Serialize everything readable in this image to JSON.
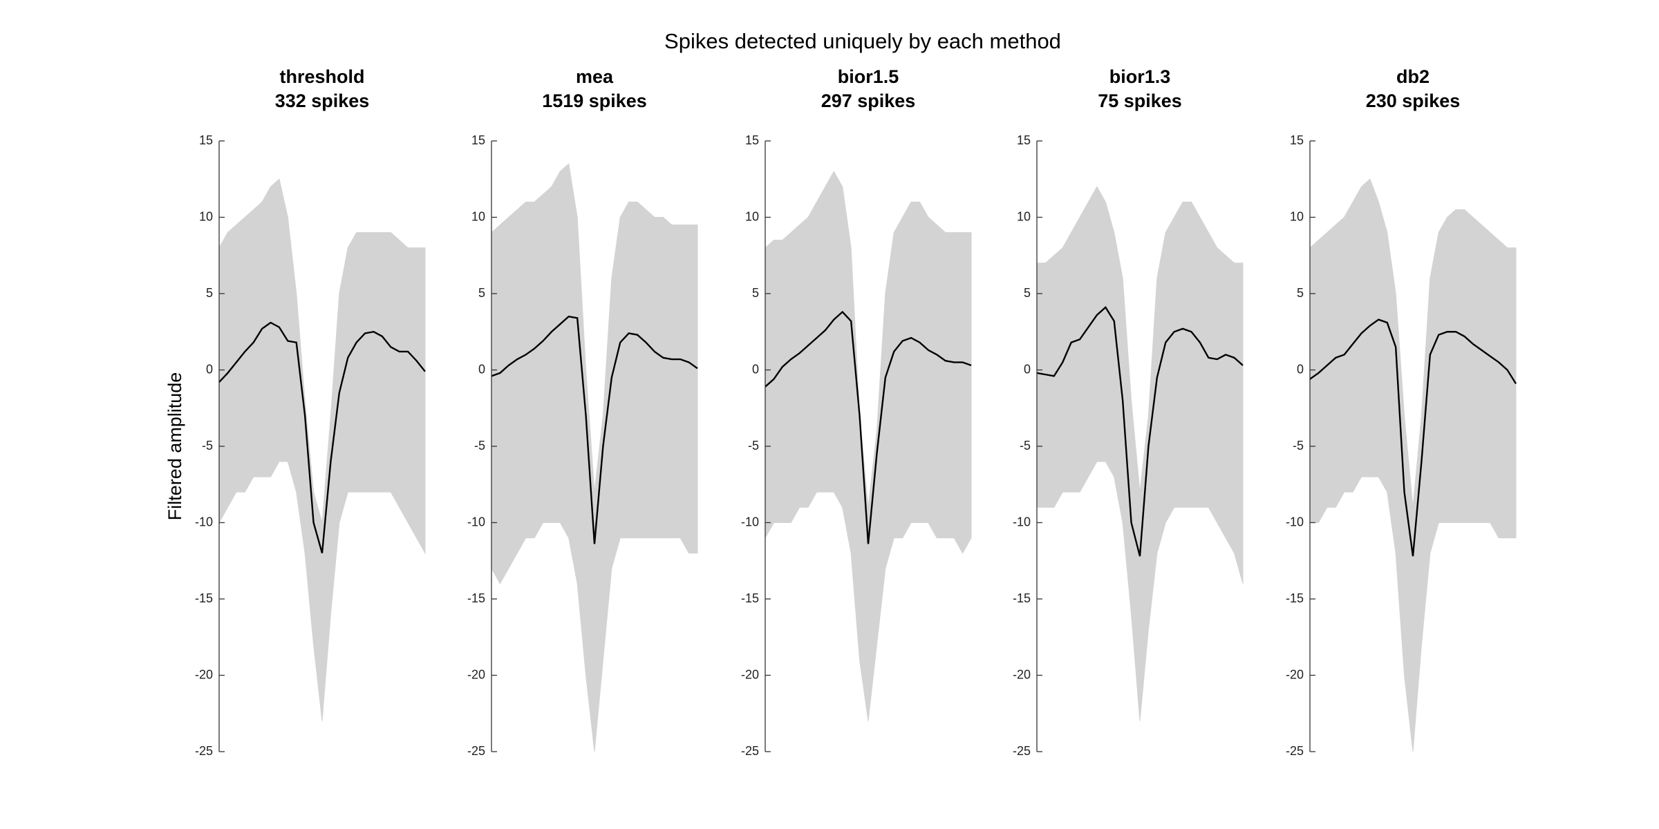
{
  "title": "Spikes detected uniquely by each method",
  "chart_data": [
    {
      "type": "line",
      "title": "threshold",
      "subtitle": "332 spikes",
      "y_label": "Filtered amplitude",
      "ylim": [
        -25,
        15
      ],
      "yticks": [
        -25,
        -20,
        -15,
        -10,
        -5,
        0,
        5,
        10,
        15
      ],
      "traces": {
        "color": "#d3d3d3",
        "upper": [
          8,
          9,
          9.5,
          10,
          10.5,
          11,
          12,
          12.5,
          10,
          5,
          -2,
          -8,
          -10,
          -3,
          5,
          8,
          9,
          9,
          9,
          9,
          9,
          8.5,
          8,
          8,
          8
        ],
        "lower": [
          -10,
          -9,
          -8,
          -8,
          -7,
          -7,
          -7,
          -6,
          -6,
          -8,
          -12,
          -18,
          -23,
          -16,
          -10,
          -8,
          -8,
          -8,
          -8,
          -8,
          -8,
          -9,
          -10,
          -11,
          -12
        ]
      },
      "mean": {
        "color": "#000000",
        "values": [
          -0.8,
          -0.2,
          0.5,
          1.2,
          1.8,
          2.7,
          3.1,
          2.8,
          1.9,
          1.8,
          -3,
          -10,
          -12,
          -6,
          -1.5,
          0.8,
          1.8,
          2.4,
          2.5,
          2.2,
          1.5,
          1.2,
          1.2,
          0.6,
          -0.1
        ]
      }
    },
    {
      "type": "line",
      "title": "mea",
      "subtitle": "1519 spikes",
      "ylim": [
        -25,
        15
      ],
      "yticks": [
        -25,
        -20,
        -15,
        -10,
        -5,
        0,
        5,
        10,
        15
      ],
      "traces": {
        "color": "#d3d3d3",
        "upper": [
          9,
          9.5,
          10,
          10.5,
          11,
          11,
          11.5,
          12,
          13,
          13.5,
          10,
          0,
          -8,
          -3,
          6,
          10,
          11,
          11,
          10.5,
          10,
          10,
          9.5,
          9.5,
          9.5,
          9.5
        ],
        "lower": [
          -13,
          -14,
          -13,
          -12,
          -11,
          -11,
          -10,
          -10,
          -10,
          -11,
          -14,
          -20,
          -25,
          -19,
          -13,
          -11,
          -11,
          -11,
          -11,
          -11,
          -11,
          -11,
          -11,
          -12,
          -12
        ]
      },
      "mean": {
        "color": "#000000",
        "values": [
          -0.4,
          -0.2,
          0.3,
          0.7,
          1.0,
          1.4,
          1.9,
          2.5,
          3.0,
          3.5,
          3.4,
          -3,
          -11.4,
          -5,
          -0.5,
          1.8,
          2.4,
          2.3,
          1.8,
          1.2,
          0.8,
          0.7,
          0.7,
          0.5,
          0.1
        ]
      }
    },
    {
      "type": "line",
      "title": "bior1.5",
      "subtitle": "297 spikes",
      "ylim": [
        -25,
        15
      ],
      "yticks": [
        -25,
        -20,
        -15,
        -10,
        -5,
        0,
        5,
        10,
        15
      ],
      "traces": {
        "color": "#d3d3d3",
        "upper": [
          8,
          8.5,
          8.5,
          9,
          9.5,
          10,
          11,
          12,
          13,
          12,
          8,
          -3,
          -9,
          -4,
          5,
          9,
          10,
          11,
          11,
          10,
          9.5,
          9,
          9,
          9,
          9
        ],
        "lower": [
          -11,
          -10,
          -10,
          -10,
          -9,
          -9,
          -8,
          -8,
          -8,
          -9,
          -12,
          -19,
          -23,
          -18,
          -13,
          -11,
          -11,
          -10,
          -10,
          -10,
          -11,
          -11,
          -11,
          -12,
          -11
        ]
      },
      "mean": {
        "color": "#000000",
        "values": [
          -1.1,
          -0.6,
          0.2,
          0.7,
          1.1,
          1.6,
          2.1,
          2.6,
          3.3,
          3.8,
          3.2,
          -3,
          -11.4,
          -5.5,
          -0.5,
          1.2,
          1.9,
          2.1,
          1.8,
          1.3,
          1.0,
          0.6,
          0.5,
          0.5,
          0.3
        ]
      }
    },
    {
      "type": "line",
      "title": "bior1.3",
      "subtitle": "75 spikes",
      "ylim": [
        -25,
        15
      ],
      "yticks": [
        -25,
        -20,
        -15,
        -10,
        -5,
        0,
        5,
        10,
        15
      ],
      "traces": {
        "color": "#d3d3d3",
        "upper": [
          7,
          7,
          7.5,
          8,
          9,
          10,
          11,
          12,
          11,
          9,
          6,
          -2,
          -8,
          -3,
          6,
          9,
          10,
          11,
          11,
          10,
          9,
          8,
          7.5,
          7,
          7
        ],
        "lower": [
          -9,
          -9,
          -9,
          -8,
          -8,
          -8,
          -7,
          -6,
          -6,
          -7,
          -10,
          -16,
          -23,
          -17,
          -12,
          -10,
          -9,
          -9,
          -9,
          -9,
          -9,
          -10,
          -11,
          -12,
          -14
        ]
      },
      "mean": {
        "color": "#000000",
        "values": [
          -0.2,
          -0.3,
          -0.4,
          0.5,
          1.8,
          2.0,
          2.8,
          3.6,
          4.1,
          3.2,
          -2,
          -10,
          -12.2,
          -5,
          -0.5,
          1.8,
          2.5,
          2.7,
          2.5,
          1.8,
          0.8,
          0.7,
          1.0,
          0.8,
          0.3
        ]
      }
    },
    {
      "type": "line",
      "title": "db2",
      "subtitle": "230 spikes",
      "ylim": [
        -25,
        15
      ],
      "yticks": [
        -25,
        -20,
        -15,
        -10,
        -5,
        0,
        5,
        10,
        15
      ],
      "traces": {
        "color": "#d3d3d3",
        "upper": [
          8,
          8.5,
          9,
          9.5,
          10,
          11,
          12,
          12.5,
          11,
          9,
          5,
          -3,
          -9,
          -3,
          6,
          9,
          10,
          10.5,
          10.5,
          10,
          9.5,
          9,
          8.5,
          8,
          8
        ],
        "lower": [
          -10,
          -10,
          -9,
          -9,
          -8,
          -8,
          -7,
          -7,
          -7,
          -8,
          -12,
          -20,
          -25,
          -18,
          -12,
          -10,
          -10,
          -10,
          -10,
          -10,
          -10,
          -10,
          -11,
          -11,
          -11
        ]
      },
      "mean": {
        "color": "#000000",
        "values": [
          -0.6,
          -0.2,
          0.3,
          0.8,
          1.0,
          1.7,
          2.4,
          2.9,
          3.3,
          3.1,
          1.5,
          -8,
          -12.2,
          -6,
          1.0,
          2.3,
          2.5,
          2.5,
          2.2,
          1.7,
          1.3,
          0.9,
          0.5,
          0.0,
          -0.9
        ]
      }
    }
  ]
}
